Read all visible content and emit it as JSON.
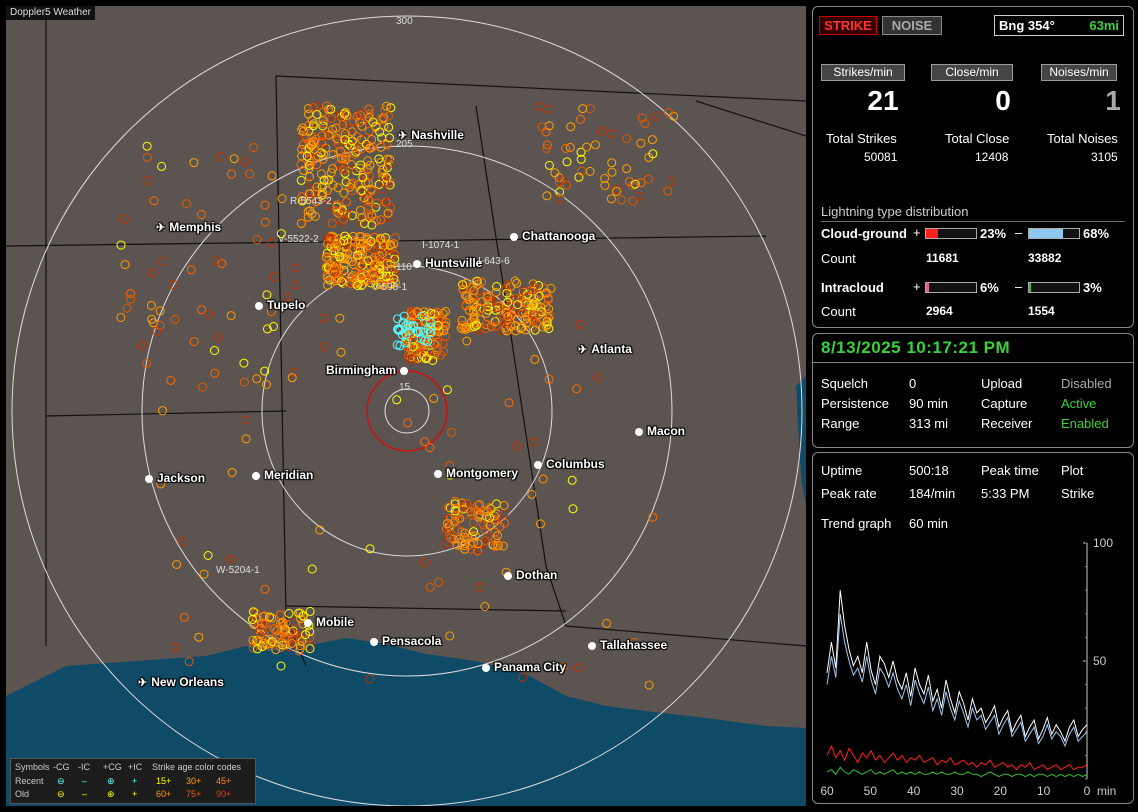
{
  "map": {
    "title": "Doppler5 Weather",
    "range_labels": [
      "300",
      "205",
      "110",
      "15"
    ],
    "cities": [
      {
        "name": "Nashville",
        "kind": "airport"
      },
      {
        "name": "Memphis",
        "kind": "airport"
      },
      {
        "name": "Chattanooga",
        "kind": "city"
      },
      {
        "name": "Huntsville",
        "kind": "city"
      },
      {
        "name": "Tupelo",
        "kind": "city"
      },
      {
        "name": "Atlanta",
        "kind": "airport"
      },
      {
        "name": "Birmingham",
        "kind": "city"
      },
      {
        "name": "Macon",
        "kind": "city"
      },
      {
        "name": "Jackson",
        "kind": "city"
      },
      {
        "name": "Meridian",
        "kind": "city"
      },
      {
        "name": "Montgomery",
        "kind": "city"
      },
      {
        "name": "Columbus",
        "kind": "city"
      },
      {
        "name": "Dothan",
        "kind": "city"
      },
      {
        "name": "Mobile",
        "kind": "city"
      },
      {
        "name": "Pensacola",
        "kind": "city"
      },
      {
        "name": "Tallahassee",
        "kind": "city"
      },
      {
        "name": "Panama City",
        "kind": "city"
      },
      {
        "name": "New Orleans",
        "kind": "airport"
      }
    ],
    "storm_markers": [
      "R-5543-2",
      "V-5522-2",
      "I-1074-1",
      "I-643-6",
      "V-598-1",
      "W-5204-1"
    ],
    "legend": {
      "symbols_label": "Symbols",
      "types": [
        "-CG",
        "-IC",
        "+CG",
        "+IC"
      ],
      "age_label": "Strike age color codes",
      "recent_label": "Recent",
      "old_label": "Old",
      "recent_ages": [
        "15+",
        "30+",
        "45+"
      ],
      "old_ages": [
        "60+",
        "75+",
        "90+"
      ],
      "age_colors": [
        "#ffff00",
        "#ffa500",
        "#ff6a00",
        "#ff9d00",
        "#e05a00",
        "#c03000"
      ]
    }
  },
  "header": {
    "strike_button": "STRIKE",
    "noise_button": "NOISE",
    "bearing": "Bng 354°",
    "distance": "63mi"
  },
  "rates": {
    "strikes_label": "Strikes/min",
    "close_label": "Close/min",
    "noises_label": "Noises/min",
    "strikes_value": "21",
    "close_value": "0",
    "noises_value": "1",
    "total_strikes_label": "Total Strikes",
    "total_close_label": "Total Close",
    "total_noises_label": "Total Noises",
    "total_strikes": "50081",
    "total_close": "12408",
    "total_noises": "3105"
  },
  "distribution": {
    "title": "Lightning type distribution",
    "cg_label": "Cloud-ground",
    "ic_label": "Intracloud",
    "count_label": "Count",
    "cg_pos_pct": "23%",
    "cg_neg_pct": "68%",
    "cg_pos_fraction": 0.23,
    "cg_neg_fraction": 0.68,
    "cg_pos_count": "11681",
    "cg_neg_count": "33882",
    "ic_pos_pct": "6%",
    "ic_neg_pct": "3%",
    "ic_pos_fraction": 0.06,
    "ic_neg_fraction": 0.03,
    "ic_pos_count": "2964",
    "ic_neg_count": "1554",
    "plus": "+",
    "minus": "–",
    "colors": {
      "cg_pos": "#ff2020",
      "cg_neg": "#8ec8f0",
      "ic_pos": "#e060a0",
      "ic_neg": "#30c030"
    }
  },
  "status": {
    "datetime": "8/13/2025 10:17:21 PM",
    "squelch_label": "Squelch",
    "squelch_value": "0",
    "persistence_label": "Persistence",
    "persistence_value": "90 min",
    "range_label": "Range",
    "range_value": "313 mi",
    "upload_label": "Upload",
    "upload_value": "Disabled",
    "capture_label": "Capture",
    "capture_value": "Active",
    "receiver_label": "Receiver",
    "receiver_value": "Enabled"
  },
  "trend": {
    "uptime_label": "Uptime",
    "uptime_value": "500:18",
    "peak_time_label": "Peak time",
    "peak_time_value": "5:33 PM",
    "plot_label": "Plot",
    "plot_value": "Strike",
    "peak_rate_label": "Peak rate",
    "peak_rate_value": "184/min",
    "trend_graph_label": "Trend graph",
    "trend_graph_value": "60 min"
  },
  "chart_data": {
    "type": "line",
    "x_ticks": [
      "60",
      "50",
      "40",
      "30",
      "20",
      "10",
      "0"
    ],
    "x_unit": "min",
    "y_ticks": [
      "100",
      "50"
    ],
    "ylim": [
      0,
      100
    ],
    "series": [
      {
        "color": "#ffffff",
        "values": [
          45,
          58,
          47,
          80,
          65,
          55,
          48,
          52,
          45,
          58,
          46,
          40,
          52,
          49,
          43,
          50,
          42,
          38,
          45,
          35,
          47,
          40,
          36,
          44,
          33,
          38,
          30,
          42,
          34,
          28,
          37,
          32,
          25,
          34,
          28,
          30,
          24,
          27,
          31,
          22,
          26,
          29,
          20,
          24,
          27,
          18,
          22,
          25,
          17,
          21,
          26,
          19,
          23,
          20,
          16,
          22,
          25,
          18,
          21,
          23
        ]
      },
      {
        "color": "#9ec6ec",
        "values": [
          40,
          52,
          43,
          70,
          58,
          50,
          44,
          47,
          41,
          52,
          42,
          36,
          47,
          44,
          39,
          45,
          38,
          34,
          40,
          31,
          42,
          36,
          32,
          39,
          29,
          34,
          27,
          37,
          30,
          25,
          33,
          28,
          22,
          30,
          25,
          27,
          21,
          24,
          27,
          19,
          23,
          26,
          18,
          21,
          24,
          16,
          19,
          22,
          15,
          18,
          23,
          17,
          20,
          18,
          14,
          19,
          22,
          16,
          18,
          20
        ]
      },
      {
        "color": "#ff2020",
        "values": [
          10,
          14,
          9,
          12,
          8,
          13,
          10,
          7,
          11,
          9,
          12,
          8,
          10,
          7,
          9,
          11,
          8,
          10,
          7,
          9,
          8,
          10,
          7,
          8,
          9,
          6,
          8,
          7,
          9,
          6,
          7,
          8,
          6,
          7,
          5,
          7,
          6,
          8,
          5,
          6,
          7,
          5,
          6,
          4,
          6,
          5,
          7,
          4,
          5,
          6,
          4,
          5,
          6,
          4,
          5,
          6,
          4,
          5,
          5,
          6
        ]
      },
      {
        "color": "#30c030",
        "values": [
          3,
          4,
          2,
          5,
          3,
          2,
          4,
          3,
          2,
          3,
          4,
          2,
          3,
          2,
          3,
          4,
          2,
          3,
          2,
          3,
          2,
          3,
          2,
          2,
          3,
          2,
          3,
          2,
          2,
          3,
          2,
          2,
          3,
          2,
          2,
          1,
          2,
          3,
          2,
          1,
          2,
          2,
          1,
          2,
          2,
          1,
          2,
          1,
          2,
          2,
          1,
          2,
          1,
          2,
          1,
          2,
          1,
          2,
          1,
          2
        ]
      }
    ]
  }
}
